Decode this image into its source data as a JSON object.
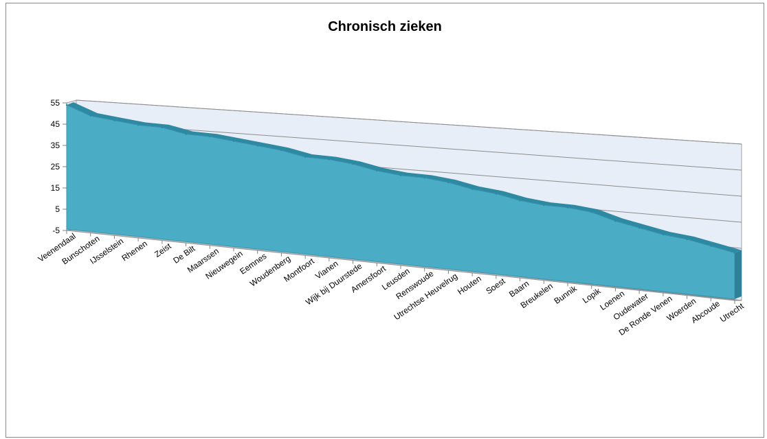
{
  "chart_data": {
    "type": "area",
    "title": "Chronisch zieken",
    "xlabel": "",
    "ylabel": "",
    "ylim": [
      -5,
      55
    ],
    "yticks": [
      -5,
      5,
      15,
      25,
      35,
      45,
      55
    ],
    "three_d": true,
    "grid": true,
    "legend": "none",
    "colors": {
      "area": "#4bacc6",
      "area_top": "#2e8aa3",
      "back_wall": "#e8eef7",
      "floor": "#c0c0c0"
    },
    "categories": [
      "Veenendaal",
      "Bunschoten",
      "IJsselstein",
      "Rhenen",
      "Zeist",
      "De Bilt",
      "Maarssen",
      "Nieuwegein",
      "Eemnes",
      "Woudenberg",
      "Montfoort",
      "Vianen",
      "Wijk bij Duurstede",
      "Amersfoort",
      "Leusden",
      "Renswoude",
      "Utrechtse Heuvelrug",
      "Houten",
      "Soest",
      "Baarn",
      "Breukelen",
      "Bunnik",
      "Lopik",
      "Loenen",
      "Oudewater",
      "De Ronde Venen",
      "Woerden",
      "Abcoude",
      "Utrecht"
    ],
    "series": [
      {
        "values": [
          54,
          50,
          49,
          48,
          48,
          46,
          46,
          45,
          44,
          43,
          41,
          41,
          40,
          38,
          37,
          37,
          36,
          34,
          33,
          31,
          30,
          30,
          29,
          26,
          24,
          22,
          21,
          19,
          17
        ]
      }
    ]
  }
}
